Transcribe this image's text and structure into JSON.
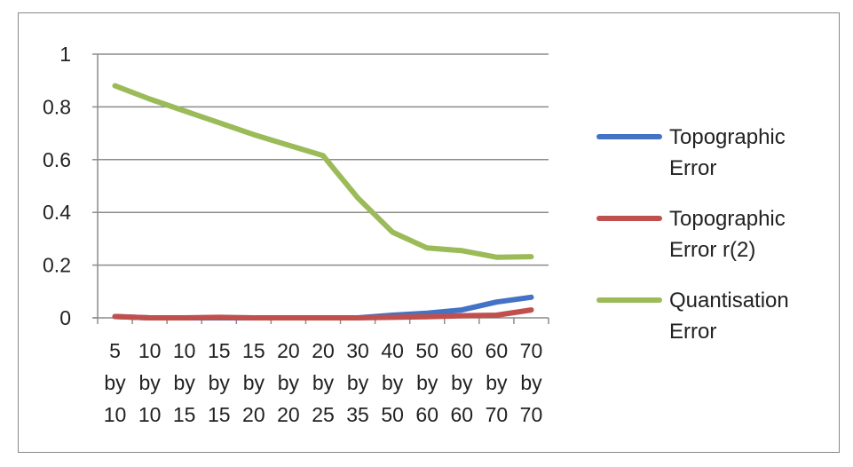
{
  "chart_data": {
    "type": "line",
    "categories": [
      "5 by 10",
      "10 by 10",
      "10 by 15",
      "15 by 15",
      "15 by 20",
      "20 by 20",
      "20 by 25",
      "30 by 35",
      "40 by 50",
      "50 by 60",
      "60 by 60",
      "60 by 70",
      "70 by 70"
    ],
    "category_lines": [
      [
        "5",
        "by",
        "10"
      ],
      [
        "10",
        "by",
        "10"
      ],
      [
        "10",
        "by",
        "15"
      ],
      [
        "15",
        "by",
        "15"
      ],
      [
        "15",
        "by",
        "20"
      ],
      [
        "20",
        "by",
        "20"
      ],
      [
        "20",
        "by",
        "25"
      ],
      [
        "30",
        "by",
        "35"
      ],
      [
        "40",
        "by",
        "50"
      ],
      [
        "50",
        "by",
        "60"
      ],
      [
        "60",
        "by",
        "60"
      ],
      [
        "60",
        "by",
        "70"
      ],
      [
        "70",
        "by",
        "70"
      ]
    ],
    "series": [
      {
        "name": "Topographic Error",
        "legend_lines": [
          "Topographic",
          "Error"
        ],
        "color": "#4472C4",
        "values": [
          0.005,
          0.0,
          0.0,
          0.0,
          0.0,
          0.0,
          0.0,
          0.0,
          0.01,
          0.018,
          0.03,
          0.06,
          0.078
        ]
      },
      {
        "name": "Topographic Error r(2)",
        "legend_lines": [
          "Topographic",
          "Error r(2)"
        ],
        "color": "#C0504D",
        "values": [
          0.005,
          0.0,
          0.0,
          0.002,
          0.0,
          0.0,
          0.0,
          0.0,
          0.002,
          0.004,
          0.008,
          0.01,
          0.03
        ]
      },
      {
        "name": "Quantisation Error",
        "legend_lines": [
          "Quantisation",
          "Error"
        ],
        "color": "#9BBB59",
        "values": [
          0.88,
          0.83,
          0.785,
          0.74,
          0.695,
          0.655,
          0.615,
          0.455,
          0.325,
          0.265,
          0.255,
          0.23,
          0.232
        ]
      }
    ],
    "yticks": [
      "0",
      "0.2",
      "0.4",
      "0.6",
      "0.8",
      "1"
    ],
    "ylim": [
      0,
      1
    ],
    "grid": true,
    "legend_position": "right",
    "title": "",
    "xlabel": "",
    "ylabel": ""
  }
}
